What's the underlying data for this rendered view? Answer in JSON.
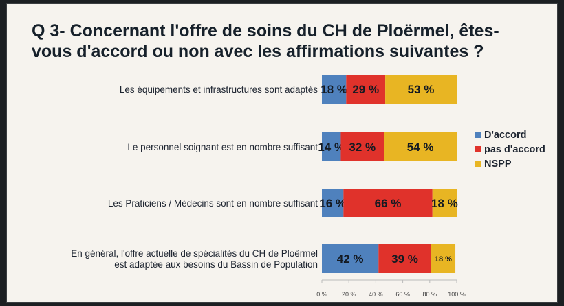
{
  "slide": {
    "title_line1": "Q 3- Concernant l'offre de soins du CH de Ploërmel, êtes-",
    "title_line2": "vous d'accord ou non avec les affirmations suivantes ?"
  },
  "chart_data": {
    "type": "bar",
    "orientation": "horizontal",
    "stacked": true,
    "categories": [
      [
        "Les équipements et infrastructures sont adaptés"
      ],
      [
        "Le personnel soignant est en nombre suffisant"
      ],
      [
        "Les Praticiens / Médecins sont en nombre suffisant"
      ],
      [
        "En général, l'offre actuelle de spécialités du CH de Ploërmel",
        "est adaptée aux besoins du Bassin de Population"
      ]
    ],
    "series": [
      {
        "name": "D'accord",
        "color": "#4f81bd",
        "values": [
          18,
          14,
          16,
          42
        ],
        "labels": [
          "18 %",
          "14 %",
          "16 %",
          "42 %"
        ]
      },
      {
        "name": "pas d'accord",
        "color": "#e0322b",
        "values": [
          29,
          32,
          66,
          39
        ],
        "labels": [
          "29 %",
          "32 %",
          "66 %",
          "39 %"
        ]
      },
      {
        "name": "NSPP",
        "color": "#e8b523",
        "values": [
          53,
          54,
          18,
          18
        ],
        "labels": [
          "53 %",
          "54 %",
          "18 %",
          "18 %"
        ]
      }
    ],
    "xlim": [
      0,
      100
    ],
    "xticks": [
      "0 %",
      "20 %",
      "40 %",
      "60 %",
      "80 %",
      "100 %"
    ],
    "legend": "right"
  }
}
